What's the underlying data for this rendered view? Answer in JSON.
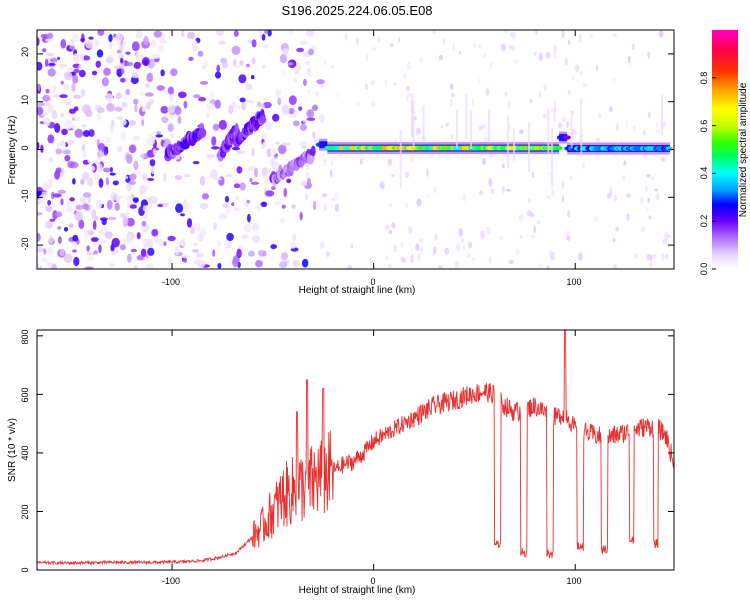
{
  "title": "S196.2025.224.06.05.E08",
  "chart_data": [
    {
      "type": "heatmap",
      "xlabel": "Height of straight line (km)",
      "ylabel": "Frequency (Hz)",
      "xlim": [
        -167,
        149
      ],
      "ylim": [
        -25,
        25
      ],
      "xticks": [
        -100,
        0,
        100
      ],
      "xtick_labels": [
        "-100",
        "0",
        "100"
      ],
      "yticks": [
        -20,
        -10,
        0,
        10,
        20
      ],
      "ytick_labels": [
        "-20",
        "-10",
        "0",
        "10",
        "20"
      ],
      "colorbar": {
        "label": "Normalized spectral amplitude",
        "range": [
          0,
          1
        ],
        "ticks": [
          0.0,
          0.2,
          0.4,
          0.6,
          0.8
        ],
        "tick_labels": [
          "0.0",
          "0.2",
          "0.4",
          "0.6",
          "0.8"
        ],
        "colors": [
          "#ffffff",
          "#e8d2ff",
          "#b070ff",
          "#6a00ff",
          "#0000ff",
          "#00a0ff",
          "#00ffff",
          "#00ff60",
          "#30ff00",
          "#c8ff00",
          "#ffff00",
          "#ffa000",
          "#ff3000",
          "#ff0050",
          "#ff00c0"
        ]
      },
      "noise_region": {
        "x": [
          -167,
          -25
        ],
        "y": [
          -25,
          25
        ],
        "level": 0.08
      },
      "chirp_segments": [
        {
          "x": [
            -102,
            -85
          ],
          "y": [
            -1,
            4
          ],
          "level": 0.2
        },
        {
          "x": [
            -76,
            -68
          ],
          "y": [
            -1,
            4
          ],
          "level": 0.18
        },
        {
          "x": [
            -68,
            -55
          ],
          "y": [
            2,
            7
          ],
          "level": 0.2
        },
        {
          "x": [
            -50,
            -30
          ],
          "y": [
            -6,
            -1
          ],
          "level": 0.15
        }
      ],
      "tone_segments": [
        {
          "x": [
            -27,
            -23
          ],
          "y": 1.0,
          "level": 0.35
        },
        {
          "x": [
            -23,
            92
          ],
          "y": 0.3,
          "level": 0.75
        },
        {
          "x": [
            92,
            96
          ],
          "y": 2.5,
          "level": 0.3
        },
        {
          "x": [
            96,
            147
          ],
          "y": 0.2,
          "level": 0.45
        }
      ]
    },
    {
      "type": "line",
      "xlabel": "Height of straight line (km)",
      "ylabel": "SNR (10 * v/v)",
      "xlim": [
        -167,
        149
      ],
      "ylim": [
        0,
        820
      ],
      "xticks": [
        -100,
        0,
        100
      ],
      "xtick_labels": [
        "-100",
        "0",
        "100"
      ],
      "yticks": [
        0,
        200,
        400,
        600,
        800
      ],
      "ytick_labels": [
        "0",
        "200",
        "400",
        "600",
        "800"
      ],
      "series": [
        {
          "name": "SNR",
          "color": "#e83030",
          "x": [
            -167,
            -150,
            -130,
            -110,
            -95,
            -85,
            -75,
            -68,
            -62,
            -55,
            -50,
            -45,
            -40,
            -35,
            -30,
            -27,
            -24,
            -20,
            -15,
            -10,
            -5,
            0,
            5,
            10,
            20,
            30,
            40,
            48,
            55,
            60,
            65,
            70,
            75,
            80,
            85,
            90,
            95,
            100,
            105,
            110,
            115,
            120,
            125,
            130,
            135,
            140,
            145,
            149
          ],
          "values": [
            25,
            24,
            26,
            26,
            28,
            32,
            45,
            60,
            100,
            150,
            200,
            250,
            270,
            285,
            300,
            320,
            320,
            340,
            360,
            370,
            400,
            440,
            460,
            480,
            520,
            560,
            580,
            600,
            610,
            600,
            560,
            540,
            550,
            560,
            540,
            520,
            540,
            480,
            470,
            460,
            450,
            460,
            470,
            480,
            490,
            490,
            460,
            360
          ],
          "dropouts": [
            {
              "x": [
                60,
                63
              ],
              "level": 90
            },
            {
              "x": [
                73,
                76
              ],
              "level": 60
            },
            {
              "x": [
                86,
                89
              ],
              "level": 55
            },
            {
              "x": [
                101,
                104
              ],
              "level": 80
            },
            {
              "x": [
                113,
                116
              ],
              "level": 70
            },
            {
              "x": [
                127,
                129
              ],
              "level": 100
            },
            {
              "x": [
                139,
                141
              ],
              "level": 90
            }
          ],
          "spikes": [
            {
              "x": -38,
              "value": 540
            },
            {
              "x": -33,
              "value": 650
            },
            {
              "x": -25,
              "value": 620
            },
            {
              "x": 95,
              "value": 820
            }
          ]
        }
      ]
    }
  ]
}
